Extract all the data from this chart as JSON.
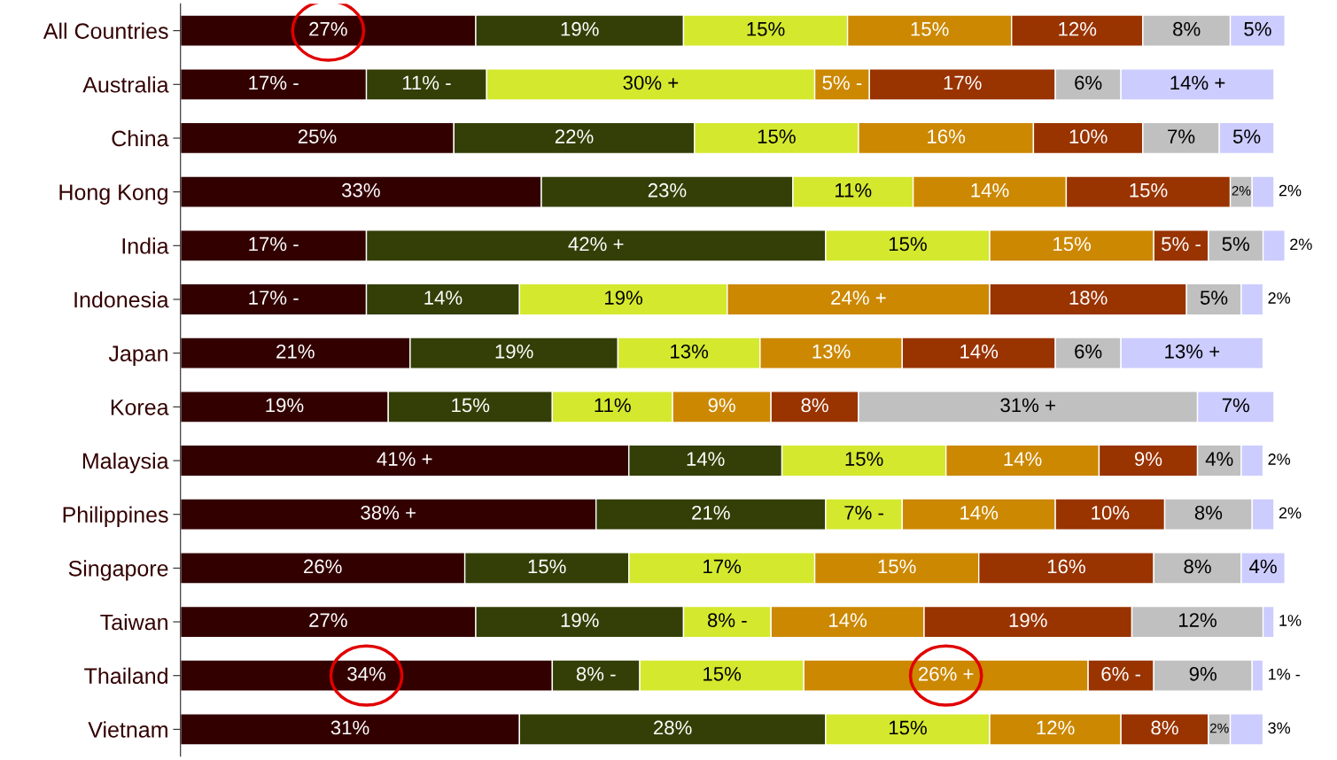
{
  "chart_data": {
    "type": "bar",
    "orientation": "horizontal",
    "stacked": true,
    "tick_labels": "y",
    "grid": false,
    "legend": false,
    "categories": [
      "All Countries",
      "Australia",
      "China",
      "Hong Kong",
      "India",
      "Indonesia",
      "Japan",
      "Korea",
      "Malaysia",
      "Philippines",
      "Singapore",
      "Taiwan",
      "Thailand",
      "Vietnam"
    ],
    "series": [
      {
        "color": "#330000",
        "values": [
          27,
          17,
          25,
          33,
          17,
          17,
          21,
          19,
          41,
          38,
          26,
          27,
          34,
          31
        ],
        "value_labels": [
          "27%",
          "17% -",
          "25%",
          "33%",
          "17% -",
          "17% -",
          "21%",
          "19%",
          "41% +",
          "38% +",
          "26%",
          "27%",
          "34%",
          "31%"
        ]
      },
      {
        "color": "#333f06",
        "values": [
          19,
          11,
          22,
          23,
          42,
          14,
          19,
          15,
          14,
          21,
          15,
          19,
          8,
          28
        ],
        "value_labels": [
          "19%",
          "11% -",
          "22%",
          "23%",
          "42% +",
          "14%",
          "19%",
          "15%",
          "14%",
          "21%",
          "15%",
          "19%",
          "8% -",
          "28%"
        ]
      },
      {
        "color": "#d4e82e",
        "values": [
          15,
          30,
          15,
          11,
          15,
          19,
          13,
          11,
          15,
          7,
          17,
          8,
          15,
          15
        ],
        "value_labels": [
          "15%",
          "30% +",
          "15%",
          "11%",
          "15%",
          "19%",
          "13%",
          "11%",
          "15%",
          "7% -",
          "17%",
          "8% -",
          "15%",
          "15%"
        ]
      },
      {
        "color": "#cc8800",
        "values": [
          15,
          5,
          16,
          14,
          15,
          24,
          13,
          9,
          14,
          14,
          15,
          14,
          26,
          12
        ],
        "value_labels": [
          "15%",
          "5% -",
          "16%",
          "14%",
          "15%",
          "24% +",
          "13%",
          "9%",
          "14%",
          "14%",
          "15%",
          "14%",
          "26% +",
          "12%"
        ]
      },
      {
        "color": "#993300",
        "values": [
          12,
          17,
          10,
          15,
          5,
          18,
          14,
          8,
          9,
          10,
          16,
          19,
          6,
          8
        ],
        "value_labels": [
          "12%",
          "17%",
          "10%",
          "15%",
          "5% -",
          "18%",
          "14%",
          "8%",
          "9%",
          "10%",
          "16%",
          "19%",
          "6% -",
          "8%"
        ]
      },
      {
        "color": "#c0c0c0",
        "values": [
          8,
          6,
          7,
          2,
          5,
          5,
          6,
          31,
          4,
          8,
          8,
          12,
          9,
          2
        ],
        "value_labels": [
          "8%",
          "6%",
          "7%",
          "2%",
          "5%",
          "5%",
          "6%",
          "31% +",
          "4%",
          "8%",
          "8%",
          "12%",
          "9%",
          "2%"
        ]
      },
      {
        "color": "#ccccff",
        "values": [
          5,
          14,
          5,
          2,
          2,
          2,
          13,
          7,
          2,
          2,
          4,
          1,
          1,
          3
        ],
        "value_labels": [
          "5%",
          "14% +",
          "5%",
          "2%",
          "2%",
          "2%",
          "13% +",
          "7%",
          "2%",
          "2%",
          "4%",
          "1%",
          "1% -",
          "3%"
        ]
      }
    ]
  }
}
